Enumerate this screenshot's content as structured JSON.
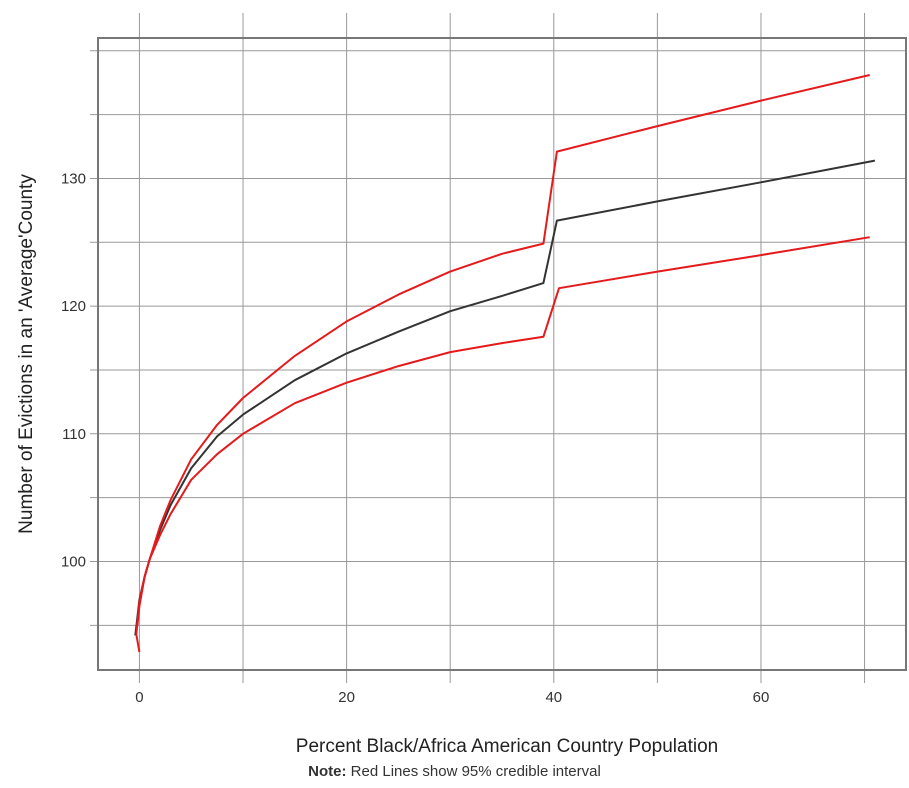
{
  "chart_data": {
    "type": "line",
    "xlabel": "Percent Black/Africa American Country Population",
    "ylabel": "Number of Evictions in an 'Average'County",
    "xlim": [
      -4,
      74
    ],
    "ylim": [
      91.5,
      141
    ],
    "x_ticks": [
      0,
      20,
      40,
      60
    ],
    "y_ticks": [
      100,
      110,
      120,
      130
    ],
    "grid": true,
    "colors": {
      "mean": "#333333",
      "interval": "#e41a1c",
      "grid": "#999999",
      "frame": "#777777"
    },
    "series": [
      {
        "role": "mean",
        "x": [
          -0.4,
          0,
          0.5,
          1,
          2,
          3,
          5,
          7.5,
          10,
          15,
          20,
          25,
          30,
          35,
          39,
          40.3,
          50,
          60,
          71
        ],
        "y": [
          94.2,
          97,
          98.8,
          100.2,
          102.5,
          104.4,
          107.3,
          109.8,
          111.5,
          114.2,
          116.3,
          118,
          119.6,
          120.8,
          121.8,
          126.7,
          128.2,
          129.7,
          131.4
        ]
      },
      {
        "role": "upper",
        "x": [
          -0.2,
          0,
          0.5,
          1,
          2,
          3,
          5,
          7.5,
          10,
          15,
          20,
          25,
          30,
          35,
          39,
          40.3,
          50,
          60,
          70.5
        ],
        "y": [
          95,
          96.5,
          98.8,
          100.2,
          102.8,
          104.8,
          108,
          110.7,
          112.8,
          116.1,
          118.8,
          120.9,
          122.7,
          124.1,
          124.9,
          132.1,
          134.1,
          136.1,
          138.1
        ]
      },
      {
        "role": "lower",
        "x": [
          0,
          -0.3,
          0,
          0.5,
          1,
          2,
          3,
          5,
          7.5,
          10,
          15,
          20,
          25,
          30,
          35,
          39,
          40.5,
          50,
          60,
          70.5
        ],
        "y": [
          92.9,
          94.3,
          96.8,
          98.8,
          100.2,
          102.1,
          103.7,
          106.4,
          108.4,
          110,
          112.4,
          114,
          115.3,
          116.4,
          117.1,
          117.6,
          121.4,
          122.7,
          124,
          125.4
        ]
      }
    ]
  },
  "note": {
    "label": "Note:",
    "text": " Red Lines show 95% credible interval"
  }
}
